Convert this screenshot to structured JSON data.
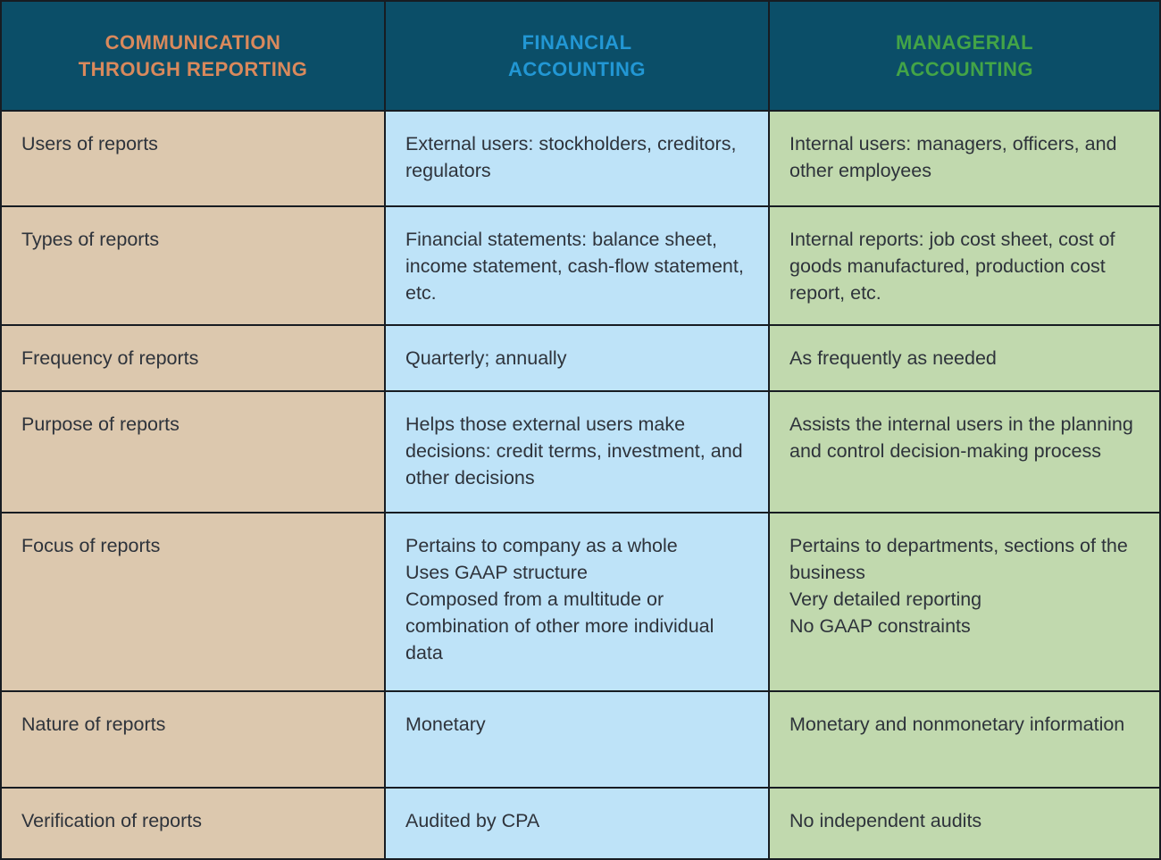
{
  "table": {
    "header": [
      {
        "label": "COMMUNICATION\nTHROUGH REPORTING",
        "color": "#d9895c"
      },
      {
        "label": "FINANCIAL\nACCOUNTING",
        "color": "#2297d4"
      },
      {
        "label": "MANAGERIAL\nACCOUNTING",
        "color": "#43a447"
      }
    ],
    "rows": [
      {
        "label": "Users of reports",
        "financial": "External users: stockholders, creditors, regulators",
        "managerial": "Internal users: managers, officers, and other employees"
      },
      {
        "label": "Types of reports",
        "financial": "Financial statements: balance sheet, income statement, cash-flow statement, etc.",
        "managerial": "Internal reports: job cost sheet, cost of goods manufactured, production cost report, etc."
      },
      {
        "label": "Frequency of reports",
        "financial": "Quarterly; annually",
        "managerial": "As frequently as needed"
      },
      {
        "label": "Purpose of reports",
        "financial": "Helps those external users make decisions: credit terms, investment, and other decisions",
        "managerial": "Assists the internal users in the planning and control decision-making process"
      },
      {
        "label": "Focus of reports",
        "financial": "Pertains to company as a whole\nUses GAAP structure\nComposed from a multitude or combination of other more individual data",
        "managerial": "Pertains to departments, sections of the business\nVery detailed reporting\nNo GAAP constraints"
      },
      {
        "label": "Nature of reports",
        "financial": "Monetary",
        "managerial": "Monetary and nonmonetary information"
      },
      {
        "label": "Verification of reports",
        "financial": "Audited by CPA",
        "managerial": "No independent audits"
      }
    ]
  },
  "colors": {
    "header_bg": "#0b4e68",
    "label_col_bg": "#dcc8ae",
    "financial_col_bg": "#bee3f8",
    "managerial_col_bg": "#c1d9ae",
    "grid_line": "#171c22",
    "body_text": "#2e333b"
  }
}
